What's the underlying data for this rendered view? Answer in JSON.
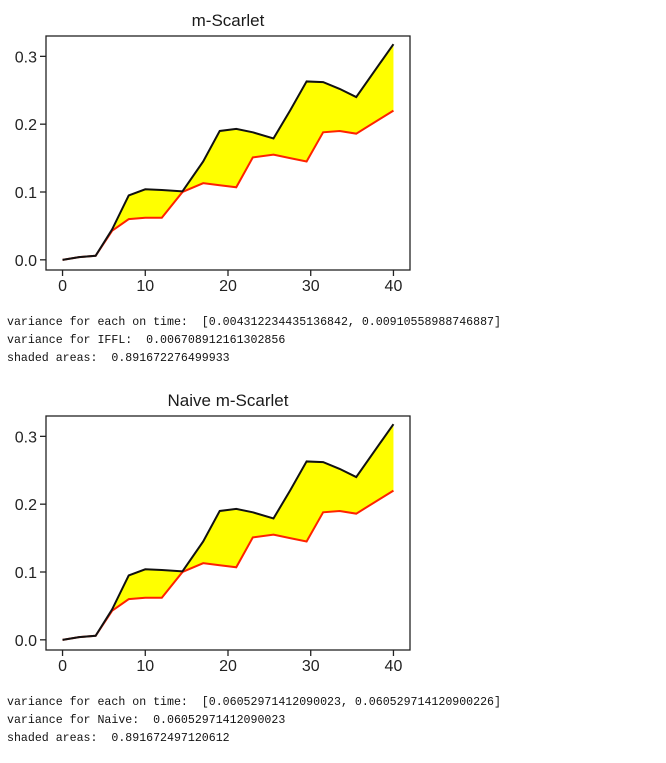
{
  "charts": [
    {
      "title": "m-Scarlet",
      "output": [
        "variance for each on time:  [0.004312234435136842, 0.00910558988746887]",
        "variance for IFFL:  0.006708912161302856",
        "shaded areas:  0.891672276499933"
      ]
    },
    {
      "title": "Naive m-Scarlet",
      "output": [
        "variance for each on time:  [0.06052971412090023, 0.060529714120900226]",
        "variance for Naive:  0.06052971412090023",
        "shaded areas:  0.891672497120612"
      ]
    }
  ],
  "chart_data": [
    {
      "type": "line",
      "title": "m-Scarlet",
      "xlabel": "",
      "ylabel": "",
      "xlim": [
        -2,
        42
      ],
      "ylim": [
        -0.015,
        0.33
      ],
      "xticks": [
        0,
        10,
        20,
        30,
        40
      ],
      "yticks": [
        0.0,
        0.1,
        0.2,
        0.3
      ],
      "xtick_labels": [
        "0",
        "10",
        "20",
        "30",
        "40"
      ],
      "ytick_labels": [
        "0.0",
        "0.1",
        "0.2",
        "0.3"
      ],
      "grid": false,
      "fill_between": {
        "color": "#ffff00"
      },
      "series": [
        {
          "color": "#111111",
          "x": [
            0,
            2,
            4,
            6,
            8,
            10,
            12,
            14.5,
            17,
            19,
            21,
            23,
            25.5,
            27.5,
            29.5,
            31.5,
            33.5,
            35.5,
            40
          ],
          "y": [
            0.0,
            0.004,
            0.006,
            0.045,
            0.095,
            0.104,
            0.103,
            0.101,
            0.145,
            0.19,
            0.193,
            0.188,
            0.179,
            0.22,
            0.263,
            0.262,
            0.252,
            0.24,
            0.318
          ]
        },
        {
          "color": "#ff2200",
          "x": [
            0,
            2,
            4,
            6,
            8,
            10,
            12,
            14.5,
            17,
            19,
            21,
            23,
            25.5,
            27.5,
            29.5,
            31.5,
            33.5,
            35.5,
            40
          ],
          "y": [
            0.0,
            0.004,
            0.006,
            0.043,
            0.06,
            0.062,
            0.062,
            0.1,
            0.113,
            0.11,
            0.107,
            0.151,
            0.155,
            0.15,
            0.145,
            0.188,
            0.19,
            0.186,
            0.22
          ]
        }
      ]
    },
    {
      "type": "line",
      "title": "Naive m-Scarlet",
      "xlabel": "",
      "ylabel": "",
      "xlim": [
        -2,
        42
      ],
      "ylim": [
        -0.015,
        0.33
      ],
      "xticks": [
        0,
        10,
        20,
        30,
        40
      ],
      "yticks": [
        0.0,
        0.1,
        0.2,
        0.3
      ],
      "xtick_labels": [
        "0",
        "10",
        "20",
        "30",
        "40"
      ],
      "ytick_labels": [
        "0.0",
        "0.1",
        "0.2",
        "0.3"
      ],
      "grid": false,
      "fill_between": {
        "color": "#ffff00"
      },
      "series": [
        {
          "color": "#111111",
          "x": [
            0,
            2,
            4,
            6,
            8,
            10,
            12,
            14.5,
            17,
            19,
            21,
            23,
            25.5,
            27.5,
            29.5,
            31.5,
            33.5,
            35.5,
            40
          ],
          "y": [
            0.0,
            0.004,
            0.006,
            0.045,
            0.095,
            0.104,
            0.103,
            0.101,
            0.145,
            0.19,
            0.193,
            0.188,
            0.179,
            0.22,
            0.263,
            0.262,
            0.252,
            0.24,
            0.318
          ]
        },
        {
          "color": "#ff2200",
          "x": [
            0,
            2,
            4,
            6,
            8,
            10,
            12,
            14.5,
            17,
            19,
            21,
            23,
            25.5,
            27.5,
            29.5,
            31.5,
            33.5,
            35.5,
            40
          ],
          "y": [
            0.0,
            0.004,
            0.006,
            0.043,
            0.06,
            0.062,
            0.062,
            0.1,
            0.113,
            0.11,
            0.107,
            0.151,
            0.155,
            0.15,
            0.145,
            0.188,
            0.19,
            0.186,
            0.22
          ]
        }
      ]
    }
  ]
}
